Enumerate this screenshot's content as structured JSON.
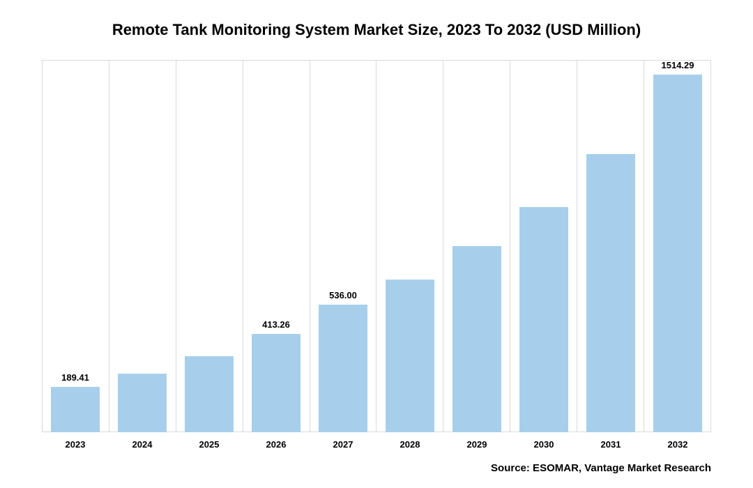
{
  "chart": {
    "type": "bar",
    "title": "Remote Tank Monitoring System Market Size, 2023 To 2032 (USD Million)",
    "title_fontsize": 22,
    "title_fontweight": 700,
    "title_color": "#000000",
    "categories": [
      "2023",
      "2024",
      "2025",
      "2026",
      "2027",
      "2028",
      "2029",
      "2030",
      "2031",
      "2032"
    ],
    "values": [
      189.41,
      245,
      318,
      413.26,
      536.0,
      640,
      780,
      945,
      1165,
      1514.29
    ],
    "show_value_label": [
      true,
      false,
      false,
      true,
      true,
      false,
      false,
      false,
      false,
      true
    ],
    "value_label_text": [
      "189.41",
      "",
      "",
      "413.26",
      "536.00",
      "",
      "",
      "",
      "",
      "1514.29"
    ],
    "bar_color": "#a7cfeb",
    "bar_width_ratio": 0.72,
    "y_max": 1560,
    "y_min": 0,
    "background_color": "#ffffff",
    "grid_color": "#d9d9d9",
    "x_tick_fontsize": 13,
    "x_tick_fontweight": 700,
    "x_tick_color": "#000000",
    "value_label_fontsize": 13,
    "value_label_fontweight": 700,
    "value_label_color": "#000000",
    "grid_vertical_count": 11
  },
  "source": {
    "text": "Source: ESOMAR, Vantage Market Research",
    "fontsize": 15,
    "fontweight": 700,
    "color": "#000000"
  }
}
